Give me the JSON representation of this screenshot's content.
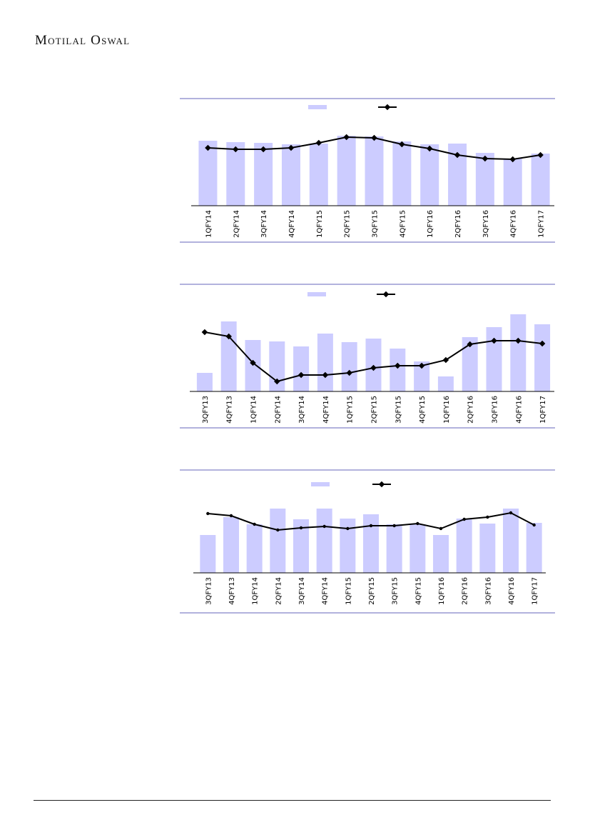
{
  "header": {
    "brand": "Motilal Oswal"
  },
  "colors": {
    "bar": "#ccccff",
    "line": "#000000",
    "rule": "#6666bb"
  },
  "chart_data": [
    {
      "type": "bar+line",
      "note_units": "relative (no axis printed)",
      "categories": [
        "1QFY14",
        "2QFY14",
        "3QFY14",
        "4QFY14",
        "1QFY15",
        "2QFY15",
        "3QFY15",
        "4QFY15",
        "1QFY16",
        "2QFY16",
        "3QFY16",
        "4QFY16",
        "1QFY17"
      ],
      "series": [
        {
          "type": "bar",
          "values": [
            91,
            89,
            88,
            86,
            87,
            98,
            97,
            90,
            86,
            87,
            74,
            66,
            73
          ]
        },
        {
          "type": "line",
          "marker": "diamond",
          "values": [
            81,
            79,
            79,
            81,
            88,
            96,
            95,
            86,
            80,
            71,
            66,
            65,
            71
          ]
        }
      ],
      "legend": "top",
      "grid": false
    },
    {
      "type": "bar+line",
      "note_units": "relative (no axis printed)",
      "categories": [
        "3QFY13",
        "4QFY13",
        "1QFY14",
        "2QFY14",
        "3QFY14",
        "4QFY14",
        "1QFY15",
        "2QFY15",
        "3QFY15",
        "4QFY15",
        "1QFY16",
        "2QFY16",
        "3QFY16",
        "4QFY16",
        "1QFY17"
      ],
      "series": [
        {
          "type": "bar",
          "values": [
            26,
            98,
            72,
            70,
            63,
            81,
            69,
            74,
            60,
            42,
            21,
            76,
            90,
            108,
            94
          ]
        },
        {
          "type": "line",
          "marker": "diamond",
          "values": [
            83,
            77,
            40,
            14,
            23,
            23,
            26,
            33,
            36,
            36,
            44,
            66,
            71,
            71,
            67
          ]
        }
      ],
      "legend": "top",
      "grid": false
    },
    {
      "type": "bar+line",
      "note_units": "relative (no axis printed)",
      "categories": [
        "3QFY13",
        "4QFY13",
        "1QFY14",
        "2QFY14",
        "3QFY14",
        "4QFY14",
        "1QFY15",
        "2QFY15",
        "3QFY15",
        "4QFY15",
        "1QFY16",
        "2QFY16",
        "3QFY16",
        "4QFY16",
        "1QFY17"
      ],
      "series": [
        {
          "type": "bar",
          "values": [
            53,
            78,
            68,
            90,
            75,
            90,
            76,
            82,
            68,
            68,
            53,
            76,
            69,
            90,
            70
          ]
        },
        {
          "type": "line",
          "marker": "dot",
          "values": [
            83,
            80,
            68,
            60,
            63,
            65,
            62,
            66,
            66,
            69,
            62,
            75,
            78,
            84,
            67
          ]
        }
      ],
      "legend": "top",
      "grid": false
    }
  ]
}
